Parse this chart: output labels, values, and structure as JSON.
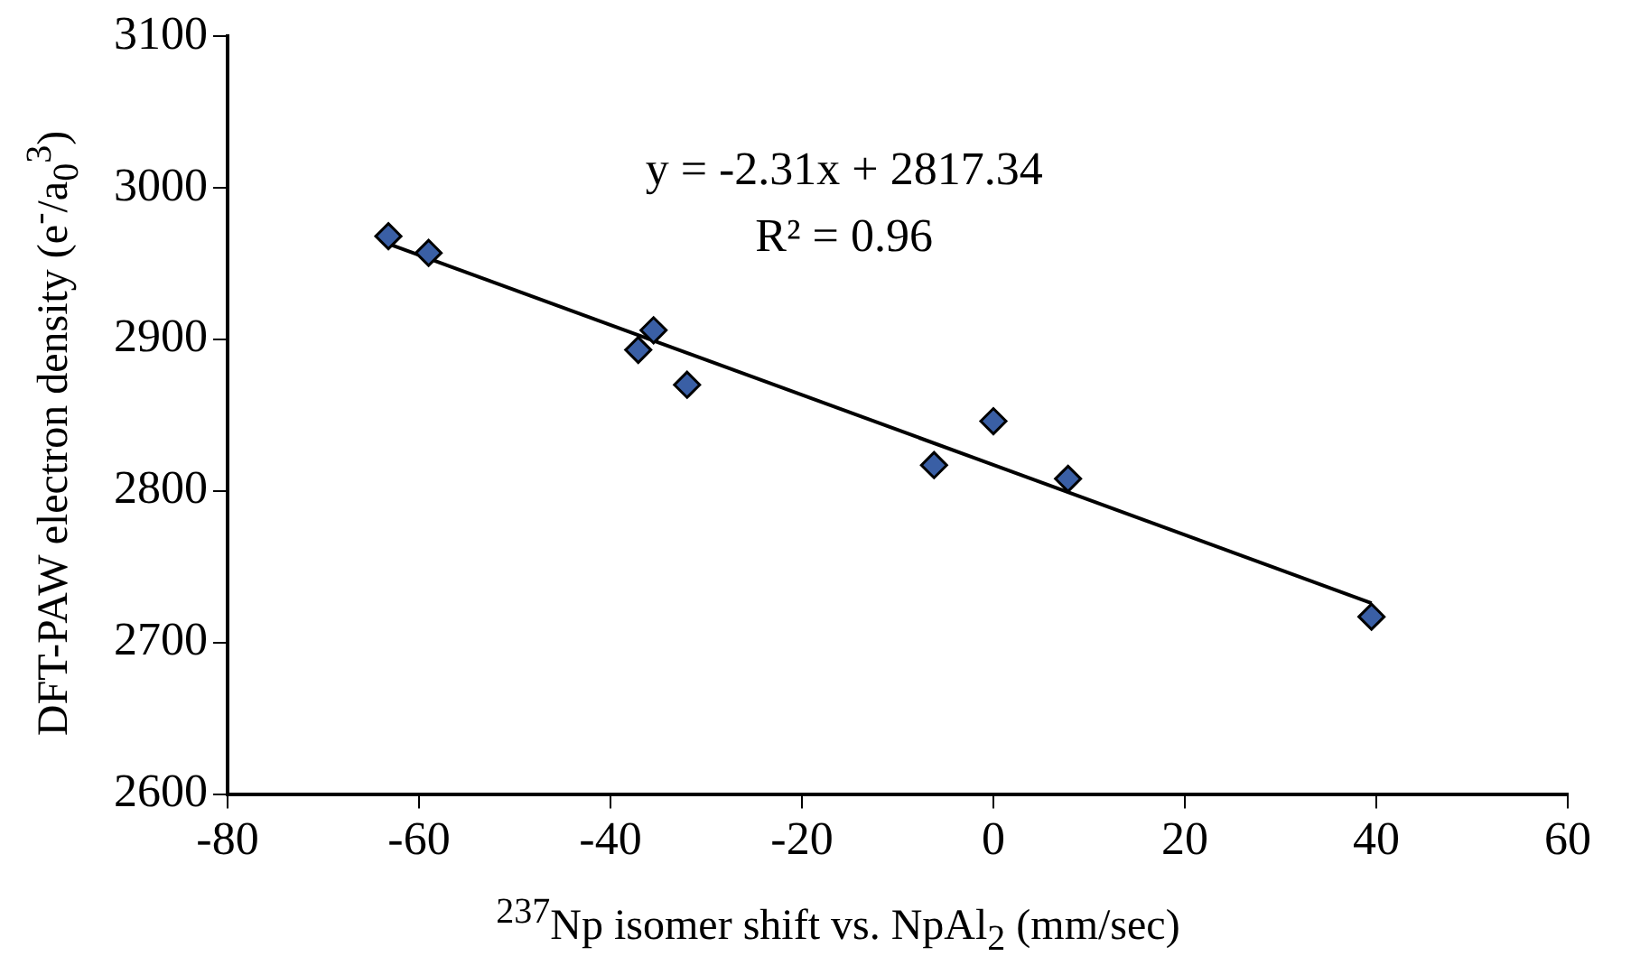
{
  "chart_data": {
    "type": "scatter",
    "xlabel": "$^{237}$Np isomer shift vs. NpAl$_{2}$ (mm/sec)",
    "ylabel": "DFT-PAW electron density (e$^{-}$/a$_{0}$$^{3}$)",
    "xlim": [
      -80,
      60
    ],
    "xticks": [
      -80,
      -60,
      -40,
      -20,
      0,
      20,
      40,
      60
    ],
    "ylim": [
      2600,
      3100
    ],
    "yticks": [
      2600,
      2700,
      2800,
      2900,
      3000,
      3100
    ],
    "grid": false,
    "legend": false,
    "marker": "diamond",
    "series": [
      {
        "type": "scatter",
        "color": "#3a5fa5",
        "x": [
          -63.2,
          -59.0,
          -35.5,
          -37.1,
          -32.0,
          -6.2,
          0,
          7.8,
          39.5
        ],
        "values": [
          2968,
          2957,
          2906,
          2893,
          2870,
          2817,
          2846,
          2808,
          2717
        ]
      },
      {
        "type": "line",
        "color": "#000000",
        "marker": "none",
        "line_style": "solid",
        "x": [
          -63.2,
          39.5
        ],
        "values": [
          2963,
          2726
        ]
      }
    ],
    "annotations": [
      "y = -2.31x + 2817.34",
      "R² = 0.96"
    ]
  }
}
